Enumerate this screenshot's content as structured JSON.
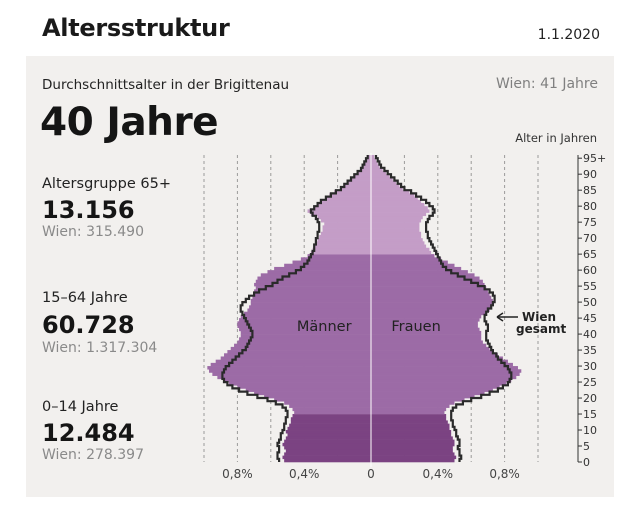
{
  "header": {
    "title": "Altersstruktur",
    "date": "1.1.2020"
  },
  "summary": {
    "subtitle": "Durchschnittsalter in der Brigittenau",
    "wien_average": "Wien: 41 Jahre",
    "average_age": "40 Jahre"
  },
  "groups": [
    {
      "label": "Altersgruppe 65+",
      "value": "13.156",
      "wien": "Wien: 315.490"
    },
    {
      "label": "15–64 Jahre",
      "value": "60.728",
      "wien": "Wien: 1.317.304"
    },
    {
      "label": "0–14 Jahre",
      "value": "12.484",
      "wien": "Wien: 278.397"
    }
  ],
  "colors": {
    "age_65_plus": "#c49dc7",
    "age_15_64": "#9c6ba6",
    "age_0_14": "#7b4382",
    "wien_outline": "#2a2a2a",
    "panel_background": "#f2f0ee"
  },
  "chart_data": {
    "type": "population-pyramid",
    "axis_title": "Alter in Jahren",
    "y_ticks": [
      "0",
      "5",
      "10",
      "15",
      "20",
      "25",
      "30",
      "35",
      "40",
      "45",
      "50",
      "55",
      "60",
      "65",
      "70",
      "75",
      "80",
      "85",
      "90",
      "95+"
    ],
    "x_ticks": [
      {
        "value": -0.8,
        "label": "0,8%"
      },
      {
        "value": -0.4,
        "label": "0,4%"
      },
      {
        "value": 0,
        "label": "0"
      },
      {
        "value": 0.4,
        "label": "0,4%"
      },
      {
        "value": 0.8,
        "label": "0,8%"
      }
    ],
    "xlim": [
      -1.0,
      1.0
    ],
    "ylim": [
      0,
      96
    ],
    "series_labels": {
      "men": "Männer",
      "women": "Frauen"
    },
    "wien_annotation": [
      "Wien",
      "gesamt"
    ],
    "age_groups": [
      {
        "from": 0,
        "to": 14,
        "color_key": "age_0_14"
      },
      {
        "from": 15,
        "to": 64,
        "color_key": "age_15_64"
      },
      {
        "from": 65,
        "to": 95,
        "color_key": "age_65_plus"
      }
    ],
    "ages": [
      0,
      1,
      2,
      3,
      4,
      5,
      6,
      7,
      8,
      9,
      10,
      11,
      12,
      13,
      14,
      15,
      16,
      17,
      18,
      19,
      20,
      21,
      22,
      23,
      24,
      25,
      26,
      27,
      28,
      29,
      30,
      31,
      32,
      33,
      34,
      35,
      36,
      37,
      38,
      39,
      40,
      41,
      42,
      43,
      44,
      45,
      46,
      47,
      48,
      49,
      50,
      51,
      52,
      53,
      54,
      55,
      56,
      57,
      58,
      59,
      60,
      61,
      62,
      63,
      64,
      65,
      66,
      67,
      68,
      69,
      70,
      71,
      72,
      73,
      74,
      75,
      76,
      77,
      78,
      79,
      80,
      81,
      82,
      83,
      84,
      85,
      86,
      87,
      88,
      89,
      90,
      91,
      92,
      93,
      94,
      95
    ],
    "brigittenau_men": [
      0.52,
      0.53,
      0.52,
      0.51,
      0.52,
      0.53,
      0.52,
      0.51,
      0.5,
      0.51,
      0.5,
      0.49,
      0.48,
      0.48,
      0.47,
      0.46,
      0.47,
      0.49,
      0.52,
      0.58,
      0.64,
      0.7,
      0.75,
      0.8,
      0.85,
      0.88,
      0.92,
      0.95,
      0.97,
      0.98,
      0.96,
      0.93,
      0.9,
      0.88,
      0.86,
      0.84,
      0.82,
      0.8,
      0.79,
      0.78,
      0.78,
      0.79,
      0.8,
      0.8,
      0.79,
      0.78,
      0.76,
      0.74,
      0.73,
      0.72,
      0.72,
      0.71,
      0.7,
      0.7,
      0.69,
      0.7,
      0.69,
      0.68,
      0.66,
      0.62,
      0.58,
      0.52,
      0.47,
      0.42,
      0.38,
      0.36,
      0.35,
      0.34,
      0.33,
      0.32,
      0.31,
      0.3,
      0.29,
      0.29,
      0.28,
      0.3,
      0.32,
      0.36,
      0.38,
      0.34,
      0.32,
      0.3,
      0.27,
      0.25,
      0.22,
      0.18,
      0.16,
      0.14,
      0.12,
      0.1,
      0.08,
      0.06,
      0.05,
      0.04,
      0.03,
      0.02
    ],
    "brigittenau_women": [
      0.5,
      0.51,
      0.5,
      0.49,
      0.49,
      0.5,
      0.5,
      0.49,
      0.48,
      0.48,
      0.47,
      0.47,
      0.46,
      0.45,
      0.45,
      0.44,
      0.45,
      0.47,
      0.5,
      0.56,
      0.62,
      0.68,
      0.73,
      0.77,
      0.81,
      0.84,
      0.87,
      0.89,
      0.9,
      0.88,
      0.85,
      0.82,
      0.79,
      0.76,
      0.73,
      0.71,
      0.69,
      0.67,
      0.66,
      0.66,
      0.66,
      0.65,
      0.64,
      0.64,
      0.65,
      0.66,
      0.69,
      0.71,
      0.72,
      0.73,
      0.73,
      0.72,
      0.71,
      0.7,
      0.69,
      0.68,
      0.67,
      0.65,
      0.62,
      0.58,
      0.54,
      0.5,
      0.46,
      0.42,
      0.38,
      0.36,
      0.35,
      0.33,
      0.32,
      0.31,
      0.3,
      0.3,
      0.29,
      0.29,
      0.29,
      0.3,
      0.31,
      0.33,
      0.35,
      0.34,
      0.32,
      0.3,
      0.28,
      0.26,
      0.23,
      0.19,
      0.17,
      0.15,
      0.13,
      0.11,
      0.09,
      0.07,
      0.05,
      0.04,
      0.03,
      0.02
    ],
    "wien_men": [
      0.55,
      0.56,
      0.56,
      0.55,
      0.55,
      0.56,
      0.55,
      0.54,
      0.54,
      0.53,
      0.52,
      0.52,
      0.51,
      0.51,
      0.5,
      0.5,
      0.51,
      0.53,
      0.57,
      0.62,
      0.68,
      0.74,
      0.79,
      0.83,
      0.86,
      0.88,
      0.89,
      0.89,
      0.88,
      0.87,
      0.85,
      0.83,
      0.81,
      0.79,
      0.77,
      0.75,
      0.74,
      0.73,
      0.72,
      0.71,
      0.71,
      0.72,
      0.73,
      0.74,
      0.75,
      0.76,
      0.77,
      0.78,
      0.78,
      0.77,
      0.75,
      0.73,
      0.7,
      0.67,
      0.63,
      0.59,
      0.56,
      0.53,
      0.49,
      0.45,
      0.42,
      0.4,
      0.38,
      0.37,
      0.36,
      0.35,
      0.34,
      0.34,
      0.33,
      0.33,
      0.32,
      0.32,
      0.31,
      0.31,
      0.31,
      0.32,
      0.33,
      0.35,
      0.36,
      0.34,
      0.32,
      0.3,
      0.27,
      0.24,
      0.21,
      0.18,
      0.16,
      0.14,
      0.12,
      0.1,
      0.08,
      0.06,
      0.05,
      0.04,
      0.03,
      0.02
    ],
    "wien_women": [
      0.53,
      0.54,
      0.53,
      0.53,
      0.52,
      0.53,
      0.53,
      0.52,
      0.51,
      0.51,
      0.5,
      0.49,
      0.49,
      0.48,
      0.48,
      0.48,
      0.49,
      0.51,
      0.55,
      0.6,
      0.66,
      0.71,
      0.76,
      0.79,
      0.82,
      0.83,
      0.84,
      0.84,
      0.83,
      0.82,
      0.8,
      0.78,
      0.76,
      0.75,
      0.73,
      0.72,
      0.71,
      0.7,
      0.69,
      0.69,
      0.69,
      0.7,
      0.7,
      0.69,
      0.68,
      0.68,
      0.69,
      0.7,
      0.72,
      0.73,
      0.74,
      0.74,
      0.73,
      0.71,
      0.68,
      0.64,
      0.6,
      0.56,
      0.52,
      0.48,
      0.45,
      0.43,
      0.42,
      0.41,
      0.4,
      0.39,
      0.38,
      0.37,
      0.36,
      0.35,
      0.34,
      0.34,
      0.33,
      0.33,
      0.33,
      0.34,
      0.35,
      0.37,
      0.38,
      0.37,
      0.35,
      0.33,
      0.3,
      0.27,
      0.24,
      0.2,
      0.18,
      0.16,
      0.14,
      0.12,
      0.1,
      0.08,
      0.06,
      0.05,
      0.04,
      0.03
    ]
  }
}
